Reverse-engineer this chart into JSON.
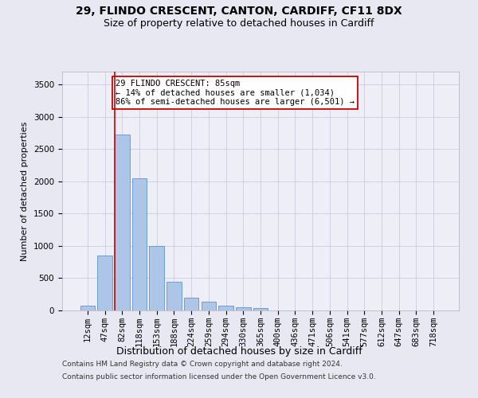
{
  "title1": "29, FLINDO CRESCENT, CANTON, CARDIFF, CF11 8DX",
  "title2": "Size of property relative to detached houses in Cardiff",
  "xlabel": "Distribution of detached houses by size in Cardiff",
  "ylabel": "Number of detached properties",
  "categories": [
    "12sqm",
    "47sqm",
    "82sqm",
    "118sqm",
    "153sqm",
    "188sqm",
    "224sqm",
    "259sqm",
    "294sqm",
    "330sqm",
    "365sqm",
    "400sqm",
    "436sqm",
    "471sqm",
    "506sqm",
    "541sqm",
    "577sqm",
    "612sqm",
    "647sqm",
    "683sqm",
    "718sqm"
  ],
  "values": [
    75,
    850,
    2720,
    2050,
    1000,
    450,
    200,
    130,
    80,
    55,
    40,
    0,
    0,
    0,
    0,
    0,
    0,
    0,
    0,
    0,
    0
  ],
  "bar_color": "#adc6e8",
  "bar_edge_color": "#4a86c8",
  "vline_color": "#cc0000",
  "annotation_text": "29 FLINDO CRESCENT: 85sqm\n← 14% of detached houses are smaller (1,034)\n86% of semi-detached houses are larger (6,501) →",
  "annotation_box_color": "#ffffff",
  "annotation_box_edge": "#cc0000",
  "ylim": [
    0,
    3700
  ],
  "yticks": [
    0,
    500,
    1000,
    1500,
    2000,
    2500,
    3000,
    3500
  ],
  "grid_color": "#ccccdd",
  "bg_color": "#e8e8f2",
  "plot_bg_color": "#eeeef6",
  "footer1": "Contains HM Land Registry data © Crown copyright and database right 2024.",
  "footer2": "Contains public sector information licensed under the Open Government Licence v3.0.",
  "title1_fontsize": 10,
  "title2_fontsize": 9,
  "xlabel_fontsize": 9,
  "ylabel_fontsize": 8,
  "tick_fontsize": 7.5,
  "annot_fontsize": 7.5,
  "footer_fontsize": 6.5
}
